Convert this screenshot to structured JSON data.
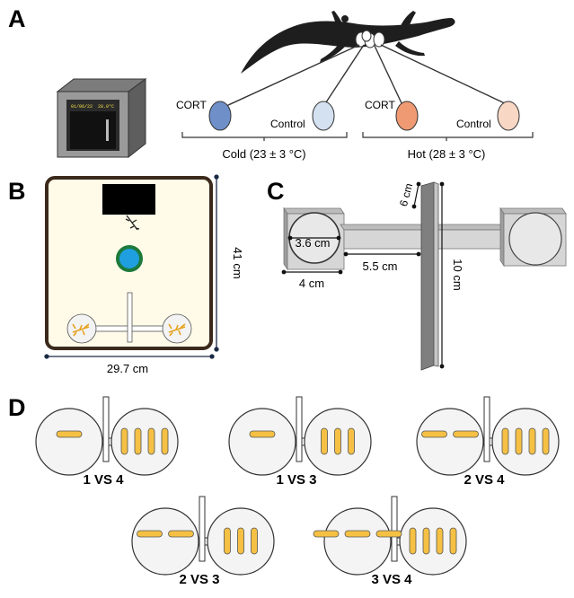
{
  "panels": {
    "a": {
      "letter": "A",
      "incubator": {
        "display_left": "01/06/22",
        "display_right": "28.0°C"
      },
      "cold_cort_label": "CORT",
      "cold_control_label": "Control",
      "hot_cort_label": "CORT",
      "hot_control_label": "Control",
      "cold_group_label": "Cold (23 ± 3 °C)",
      "hot_group_label": "Hot (28 ± 3 °C)",
      "colors": {
        "cold_cort": "#6f8fc9",
        "cold_control": "#d3e1f1",
        "hot_cort": "#ef9a72",
        "hot_control": "#f8d7c5"
      }
    },
    "b": {
      "letter": "B",
      "height_label": "41 cm",
      "width_label": "29.7 cm",
      "colors": {
        "arena_fill": "#fffbe8",
        "arena_border": "#3b2a1c",
        "water": "#1f9ee0",
        "water_ring": "#1c7a3c"
      }
    },
    "c": {
      "letter": "C",
      "dim_chamber_diameter": "3.6 cm",
      "dim_chamber_width": "4 cm",
      "dim_corridor": "5.5 cm",
      "dim_partition_height": "6 cm",
      "dim_partition_length": "10 cm"
    },
    "d": {
      "letter": "D",
      "comparisons": [
        "1 VS 4",
        "1 VS 3",
        "2 VS 4",
        "2 VS 3",
        "3 VS 4"
      ],
      "colors": {
        "prey": "#f5c043"
      }
    }
  }
}
